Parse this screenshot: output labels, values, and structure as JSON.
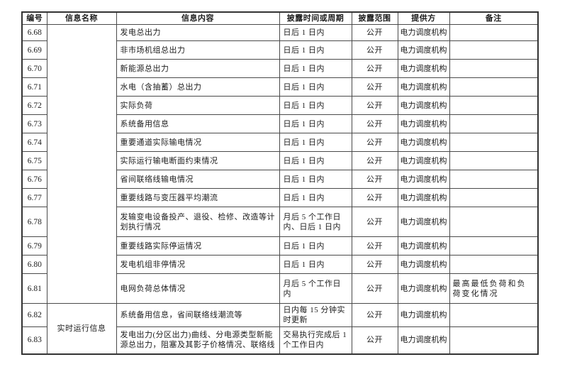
{
  "colors": {
    "page_background": "#ffffff",
    "border": "#4a4a4a",
    "outer_border": "#333333",
    "text": "#1c1c1c"
  },
  "table": {
    "headers": [
      "编号",
      "信息名称",
      "信息内容",
      "披露时间或周期",
      "披露范围",
      "提供方",
      "备注"
    ],
    "name_groups": [
      {
        "start_index": 0,
        "span": 14,
        "label": ""
      },
      {
        "start_index": 14,
        "span": 2,
        "label": "实时运行信息"
      }
    ],
    "rows": [
      {
        "id": "6.68",
        "content": "发电总出力",
        "time": "日后 1 日内",
        "scope": "公开",
        "provider": "电力调度机构",
        "remark": ""
      },
      {
        "id": "6.69",
        "content": "非市场机组总出力",
        "time": "日后 1 日内",
        "scope": "公开",
        "provider": "电力调度机构",
        "remark": ""
      },
      {
        "id": "6.70",
        "content": "新能源总出力",
        "time": "日后 1 日内",
        "scope": "公开",
        "provider": "电力调度机构",
        "remark": ""
      },
      {
        "id": "6.71",
        "content": "水电（含抽蓄）总出力",
        "time": "日后 1 日内",
        "scope": "公开",
        "provider": "电力调度机构",
        "remark": ""
      },
      {
        "id": "6.72",
        "content": "实际负荷",
        "time": "日后 1 日内",
        "scope": "公开",
        "provider": "电力调度机构",
        "remark": ""
      },
      {
        "id": "6.73",
        "content": "系统备用信息",
        "time": "日后 1 日内",
        "scope": "公开",
        "provider": "电力调度机构",
        "remark": ""
      },
      {
        "id": "6.74",
        "content": "重要通道实际输电情况",
        "time": "日后 1 日内",
        "scope": "公开",
        "provider": "电力调度机构",
        "remark": ""
      },
      {
        "id": "6.75",
        "content": "实际运行输电断面约束情况",
        "time": "日后 1 日内",
        "scope": "公开",
        "provider": "电力调度机构",
        "remark": ""
      },
      {
        "id": "6.76",
        "content": "省间联络线输电情况",
        "time": "日后 1 日内",
        "scope": "公开",
        "provider": "电力调度机构",
        "remark": ""
      },
      {
        "id": "6.77",
        "content": "重要线路与变压器平均潮流",
        "time": "日后 1 日内",
        "scope": "公开",
        "provider": "电力调度机构",
        "remark": ""
      },
      {
        "id": "6.78",
        "content": "发输变电设备投产、退役、检修、改造等计划执行情况",
        "time": "月后 5 个工作日内、日后 1 日内",
        "scope": "公开",
        "provider": "电力调度机构",
        "remark": ""
      },
      {
        "id": "6.79",
        "content": "重要线路实际停运情况",
        "time": "日后 1 日内",
        "scope": "公开",
        "provider": "电力调度机构",
        "remark": ""
      },
      {
        "id": "6.80",
        "content": "发电机组非停情况",
        "time": "日后 1 日内",
        "scope": "公开",
        "provider": "电力调度机构",
        "remark": ""
      },
      {
        "id": "6.81",
        "content": "电网负荷总体情况",
        "time": "月后 5 个工作日内",
        "scope": "公开",
        "provider": "电力调度机构",
        "remark": "最高最低负荷和负荷变化情况"
      },
      {
        "id": "6.82",
        "content": "系统备用信息，省间联络线潮流等",
        "time": "日内每 15 分钟实时更新",
        "scope": "公开",
        "provider": "电力调度机构",
        "remark": ""
      },
      {
        "id": "6.83",
        "content": "发电出力(分区出力)曲线、分电源类型新能源总出力，阻塞及其影子价格情况、联络线",
        "time": "交易执行完成后 1 个工作日内",
        "scope": "公开",
        "provider": "电力调度机构",
        "remark": ""
      }
    ]
  }
}
